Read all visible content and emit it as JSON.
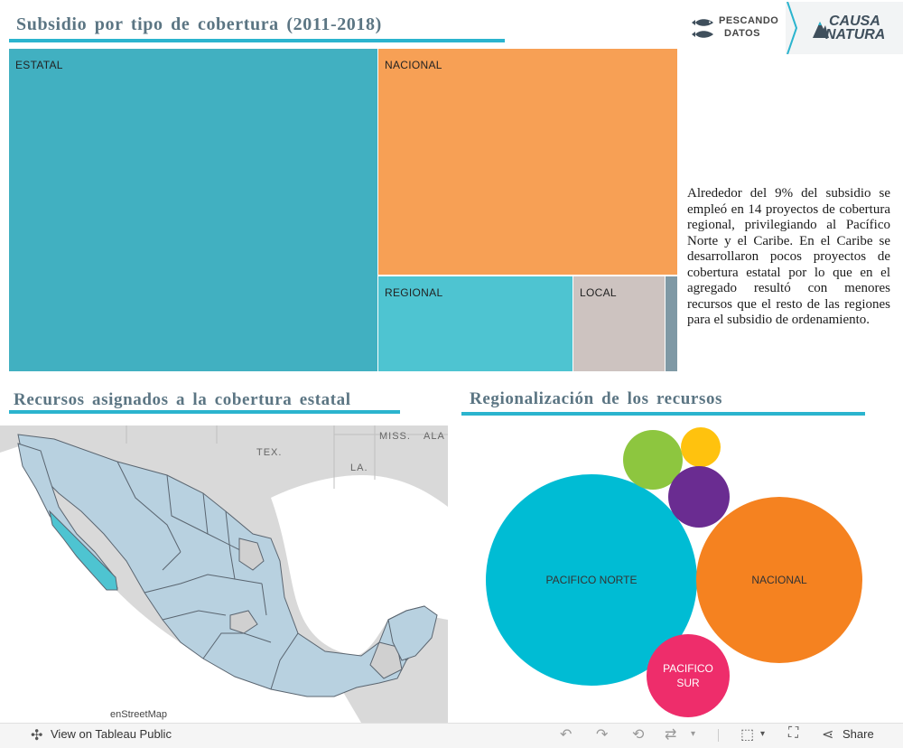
{
  "section1": {
    "title": "Subsidio por tipo de cobertura (2011-2018)"
  },
  "treemap": {
    "type": "treemap",
    "items": [
      {
        "label": "ESTATAL",
        "color": "#41b0c1"
      },
      {
        "label": "NACIONAL",
        "color": "#f7a055"
      },
      {
        "label": "REGIONAL",
        "color": "#4ec4d1"
      },
      {
        "label": "LOCAL",
        "color": "#cdc3c0"
      },
      {
        "label": "",
        "color": "#7f99a5"
      }
    ]
  },
  "paragraph": "Alrededor del 9% del subsidio se empleó en 14 proyectos de cobertura regional, privilegiando al Pacífico Norte y el Caribe. En el Caribe se desarrollaron pocos proyectos de cobertura estatal por lo que en el agregado resultó con menores recursos que el resto de las regiones para el subsidio de ordenamiento.",
  "logos": {
    "pescando_line1": "PESCANDO",
    "pescando_line2": "DATOS",
    "causa_line1": "CAUSA",
    "causa_line2": "NATURA"
  },
  "section2": {
    "title": "Recursos asignados a la cobertura estatal"
  },
  "map": {
    "labels": [
      "TEX.",
      "LA.",
      "MISS.",
      "ALA"
    ],
    "credit": "enStreetMap",
    "highlight_color": "#4ec4d1",
    "state_color": "#b8d1e0"
  },
  "section3": {
    "title": "Regionalización de los recursos"
  },
  "chart_data": {
    "type": "bubble",
    "bubbles": [
      {
        "label": "PACIFICO NORTE",
        "color": "#00bcd4"
      },
      {
        "label": "NACIONAL",
        "color": "#f58220"
      },
      {
        "label": "PACIFICO SUR",
        "color": "#ee2d6b"
      },
      {
        "label": "",
        "color": "#8dc63f"
      },
      {
        "label": "",
        "color": "#ffc20e"
      },
      {
        "label": "",
        "color": "#6a2c91"
      }
    ]
  },
  "toolbar": {
    "view_label": "View on Tableau Public",
    "share_label": "Share"
  }
}
